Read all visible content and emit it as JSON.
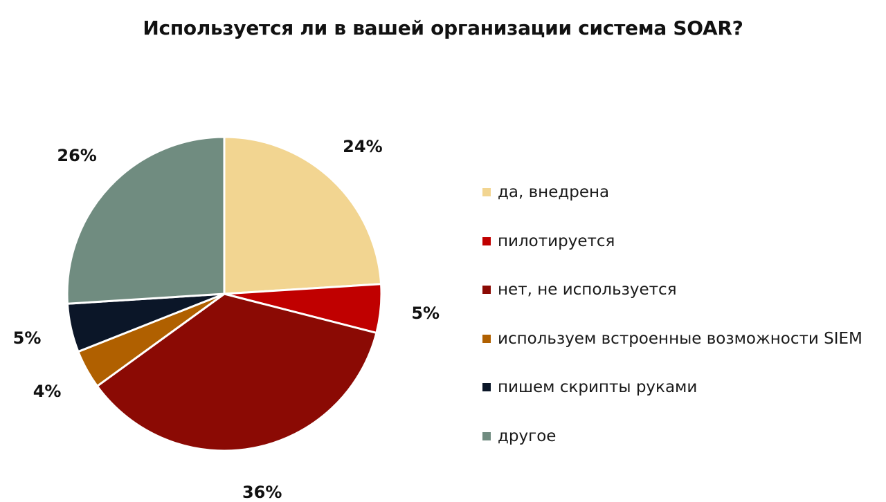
{
  "chart_data": {
    "type": "pie",
    "title": "Используется ли в вашей организации система SOAR?",
    "slices": [
      {
        "label": "да, внедрена",
        "value": 24,
        "value_label": "24%",
        "color": "#f2d591"
      },
      {
        "label": "пилотируется",
        "value": 5,
        "value_label": "5%",
        "color": "#c00000"
      },
      {
        "label": "нет, не используется",
        "value": 36,
        "value_label": "36%",
        "color": "#8b0a04"
      },
      {
        "label": "используем встроенные возможности SIEM",
        "value": 4,
        "value_label": "4%",
        "color": "#b06000"
      },
      {
        "label": "пишем скрипты руками",
        "value": 5,
        "value_label": "5%",
        "color": "#0b1628"
      },
      {
        "label": "другое",
        "value": 26,
        "value_label": "26%",
        "color": "#708c80"
      }
    ],
    "start_angle": "12 o'clock",
    "direction": "clockwise",
    "legend_position": "right"
  }
}
